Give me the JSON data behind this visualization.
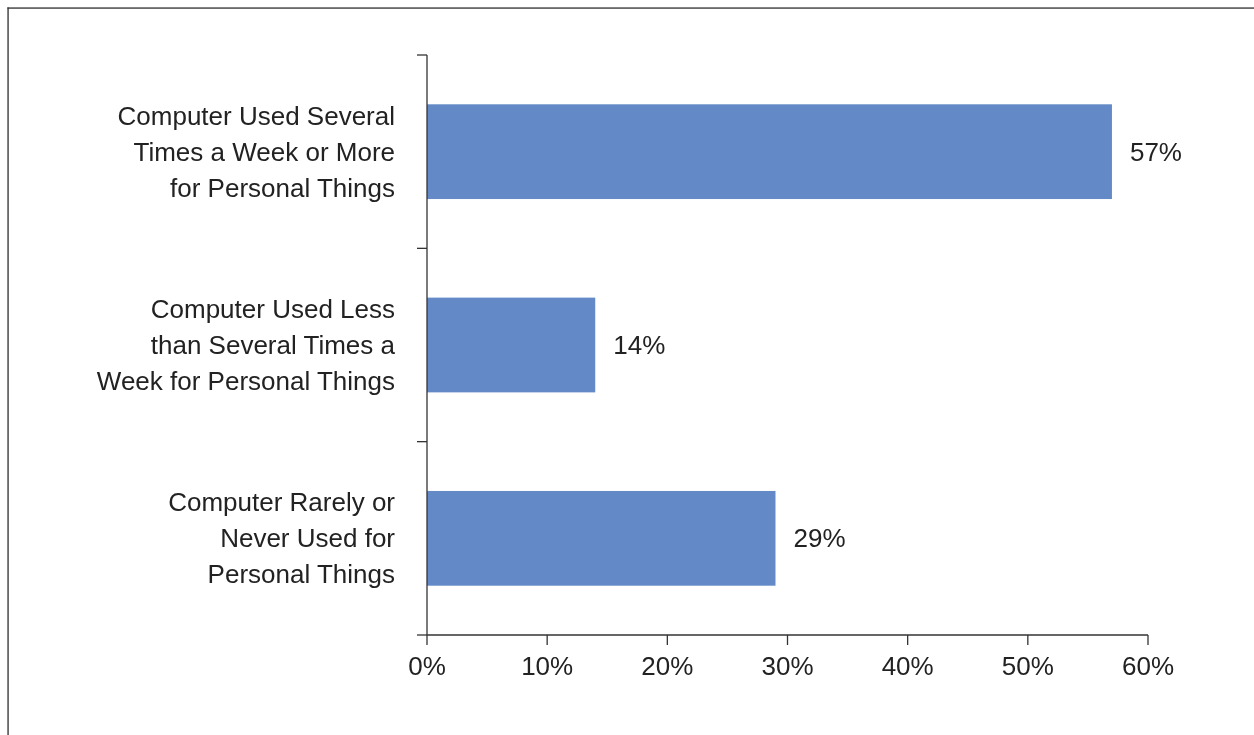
{
  "chart_data": {
    "type": "bar",
    "orientation": "horizontal",
    "categories": [
      "Computer Used Several\nTimes a Week or More\nfor Personal Things",
      "Computer Used Less\nthan Several Times a\nWeek for Personal Things",
      "Computer Rarely or\nNever Used for\nPersonal Things"
    ],
    "values": [
      57,
      14,
      29
    ],
    "value_labels": [
      "57%",
      "14%",
      "29%"
    ],
    "color": "#6389c6",
    "xlim": [
      0,
      60
    ],
    "xticks": [
      {
        "value": 0,
        "label": "0%"
      },
      {
        "value": 10,
        "label": "10%"
      },
      {
        "value": 20,
        "label": "20%"
      },
      {
        "value": 30,
        "label": "30%"
      },
      {
        "value": 40,
        "label": "40%"
      },
      {
        "value": 50,
        "label": "50%"
      },
      {
        "value": 60,
        "label": "60%"
      }
    ],
    "grid": false
  }
}
